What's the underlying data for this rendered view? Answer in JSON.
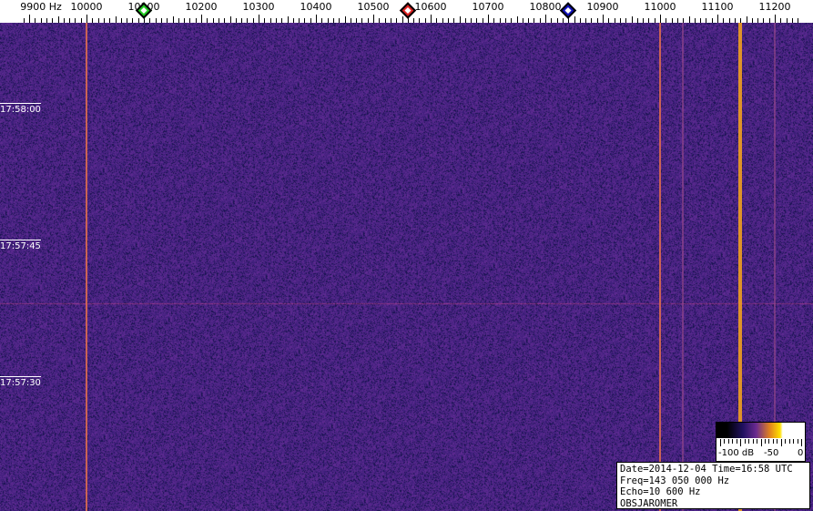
{
  "chart_data": {
    "type": "heatmap",
    "title": "",
    "x_unit_label": "Hz",
    "x_range_hz": [
      9890,
      11240
    ],
    "x_tick_labels": [
      "9900",
      "10000",
      "10100",
      "10200",
      "10300",
      "10400",
      "10500",
      "10600",
      "10700",
      "10800",
      "10900",
      "11000",
      "11100",
      "11200"
    ],
    "x_first_label_suffix": "Hz",
    "y_tick_labels": [
      "17:58:00",
      "17:57:45",
      "17:57:30"
    ],
    "markers": [
      {
        "name": "green",
        "freq_hz": 10100,
        "color": "#22cc22"
      },
      {
        "name": "red",
        "freq_hz": 10560,
        "color": "#dd2222"
      },
      {
        "name": "blue",
        "freq_hz": 10840,
        "color": "#1111bb"
      }
    ],
    "signals": [
      {
        "freq_hz": 10000,
        "strength": "medium"
      },
      {
        "freq_hz": 11000,
        "strength": "medium"
      },
      {
        "freq_hz": 11040,
        "strength": "weak"
      },
      {
        "freq_hz": 11140,
        "strength": "strong"
      },
      {
        "freq_hz": 11200,
        "strength": "weak"
      }
    ],
    "colorbar": {
      "labels": [
        "-100 dB",
        "-50",
        "0"
      ],
      "range_db": [
        -100,
        0
      ]
    },
    "background_color": "#3a1f80"
  },
  "info": {
    "line1": "Date=2014-12-04 Time=16:58 UTC",
    "line2": "Freq=143 050 000 Hz",
    "line3": "Echo=10 600 Hz",
    "line4": "OBSJAROMER"
  }
}
